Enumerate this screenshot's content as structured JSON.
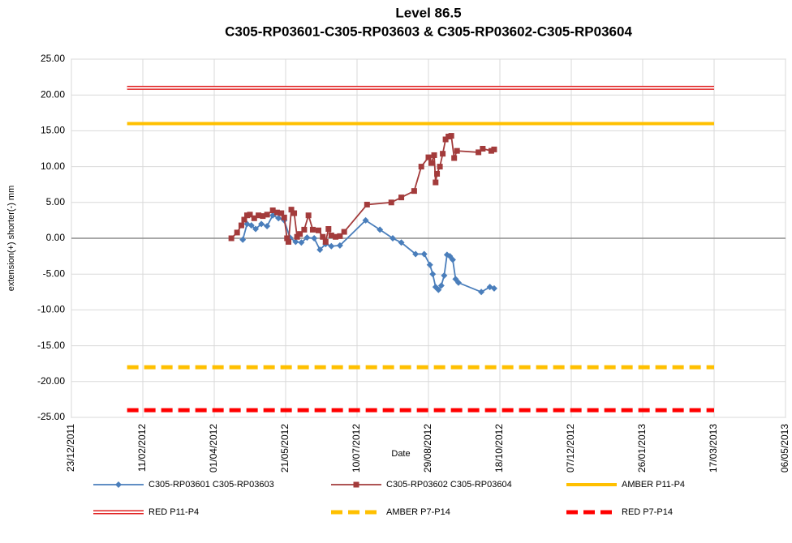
{
  "chart_data": {
    "type": "line",
    "title": "Level 86.5",
    "subtitle": "C305-RP03601-C305-RP03603 & C305-RP03602-C305-RP03604",
    "x_label": "Date",
    "y_label": "extension(+) shorter(-) mm",
    "xlim": [
      "23/12/2011",
      "06/05/2013"
    ],
    "xticks": [
      "23/12/2011",
      "11/02/2012",
      "01/04/2012",
      "21/05/2012",
      "10/07/2012",
      "29/08/2012",
      "18/10/2012",
      "07/12/2012",
      "26/01/2013",
      "17/03/2013",
      "06/05/2013"
    ],
    "ylim": [
      -25,
      25
    ],
    "yticks": [
      {
        "value": -25,
        "label": "-25.00"
      },
      {
        "value": -20,
        "label": "-20.00"
      },
      {
        "value": -15,
        "label": "-15.00"
      },
      {
        "value": -10,
        "label": "-10.00"
      },
      {
        "value": -5,
        "label": "-5.00"
      },
      {
        "value": 0,
        "label": "0.00"
      },
      {
        "value": 5,
        "label": "5.00"
      },
      {
        "value": 10,
        "label": "10.00"
      },
      {
        "value": 15,
        "label": "15.00"
      },
      {
        "value": 20,
        "label": "20.00"
      },
      {
        "value": 25,
        "label": "25.00"
      }
    ],
    "grid": true,
    "legend": "bottom",
    "series": [
      {
        "name": "C305-RP03601 C305-RP03603",
        "color": "#4a7ebb",
        "line_style": "solid",
        "marker": "diamond",
        "x": [
          "21/04/2012",
          "24/04/2012",
          "27/04/2012",
          "30/04/2012",
          "04/05/2012",
          "08/05/2012",
          "12/05/2012",
          "16/05/2012",
          "20/05/2012",
          "24/05/2012",
          "28/05/2012",
          "01/06/2012",
          "05/06/2012",
          "10/06/2012",
          "14/06/2012",
          "18/06/2012",
          "22/06/2012",
          "28/06/2012",
          "16/07/2012",
          "26/07/2012",
          "04/08/2012",
          "10/08/2012",
          "20/08/2012",
          "26/08/2012",
          "30/08/2012",
          "01/09/2012",
          "03/09/2012",
          "05/09/2012",
          "07/09/2012",
          "09/09/2012",
          "11/09/2012",
          "13/09/2012",
          "15/09/2012",
          "17/09/2012",
          "19/09/2012",
          "05/10/2012",
          "11/10/2012",
          "14/10/2012"
        ],
        "values": [
          -0.2,
          2.0,
          1.8,
          1.3,
          2.0,
          1.7,
          3.2,
          2.8,
          2.5,
          0.1,
          -0.5,
          -0.6,
          0.1,
          0.0,
          -1.6,
          -0.8,
          -1.1,
          -1.0,
          2.5,
          1.2,
          0.0,
          -0.6,
          -2.2,
          -2.2,
          -3.7,
          -5.0,
          -6.8,
          -7.2,
          -6.6,
          -5.2,
          -2.3,
          -2.5,
          -3.0,
          -5.7,
          -6.2,
          -7.5,
          -6.8,
          -7.0
        ]
      },
      {
        "name": "C305-RP03602 C305-RP03604",
        "color": "#a33b3b",
        "line_style": "solid",
        "marker": "square",
        "x": [
          "13/04/2012",
          "17/04/2012",
          "20/04/2012",
          "22/04/2012",
          "24/04/2012",
          "26/04/2012",
          "29/04/2012",
          "02/05/2012",
          "05/05/2012",
          "08/05/2012",
          "12/05/2012",
          "15/05/2012",
          "18/05/2012",
          "20/05/2012",
          "22/05/2012",
          "23/05/2012",
          "25/05/2012",
          "27/05/2012",
          "29/05/2012",
          "31/05/2012",
          "03/06/2012",
          "06/06/2012",
          "09/06/2012",
          "13/06/2012",
          "16/06/2012",
          "18/06/2012",
          "20/06/2012",
          "22/06/2012",
          "25/06/2012",
          "28/06/2012",
          "01/07/2012",
          "17/07/2012",
          "03/08/2012",
          "10/08/2012",
          "19/08/2012",
          "24/08/2012",
          "29/08/2012",
          "31/08/2012",
          "02/09/2012",
          "03/09/2012",
          "04/09/2012",
          "06/09/2012",
          "08/09/2012",
          "10/09/2012",
          "12/09/2012",
          "14/09/2012",
          "16/09/2012",
          "18/09/2012",
          "03/10/2012",
          "06/10/2012",
          "12/10/2012",
          "14/10/2012"
        ],
        "values": [
          0.0,
          0.8,
          1.8,
          2.6,
          3.2,
          3.3,
          2.8,
          3.2,
          3.1,
          3.3,
          3.9,
          3.6,
          3.5,
          2.9,
          0.0,
          -0.5,
          4.0,
          3.5,
          0.2,
          0.6,
          1.2,
          3.2,
          1.2,
          1.1,
          0.2,
          -0.5,
          1.3,
          0.4,
          0.2,
          0.3,
          0.9,
          4.7,
          5.0,
          5.7,
          6.6,
          10.0,
          11.3,
          10.5,
          11.6,
          7.8,
          9.0,
          10.0,
          11.8,
          13.8,
          14.2,
          14.3,
          11.2,
          12.2,
          12.0,
          12.5,
          12.2,
          12.4
        ]
      },
      {
        "name": "AMBER P11-P4",
        "color": "#ffc000",
        "line_style": "solid",
        "x": [
          "31/01/2012",
          "17/03/2013"
        ],
        "values": [
          16,
          16
        ]
      },
      {
        "name": "RED P11-P4",
        "color": "#e02020",
        "line_style": "double",
        "x": [
          "31/01/2012",
          "17/03/2013"
        ],
        "values": [
          21,
          21
        ]
      },
      {
        "name": "AMBER P7-P14",
        "color": "#ffc000",
        "line_style": "dashed",
        "x": [
          "31/01/2012",
          "17/03/2013"
        ],
        "values": [
          -18,
          -18
        ]
      },
      {
        "name": "RED P7-P14",
        "color": "#ff0000",
        "line_style": "dashed",
        "x": [
          "31/01/2012",
          "17/03/2013"
        ],
        "values": [
          -24,
          -24
        ]
      }
    ]
  }
}
